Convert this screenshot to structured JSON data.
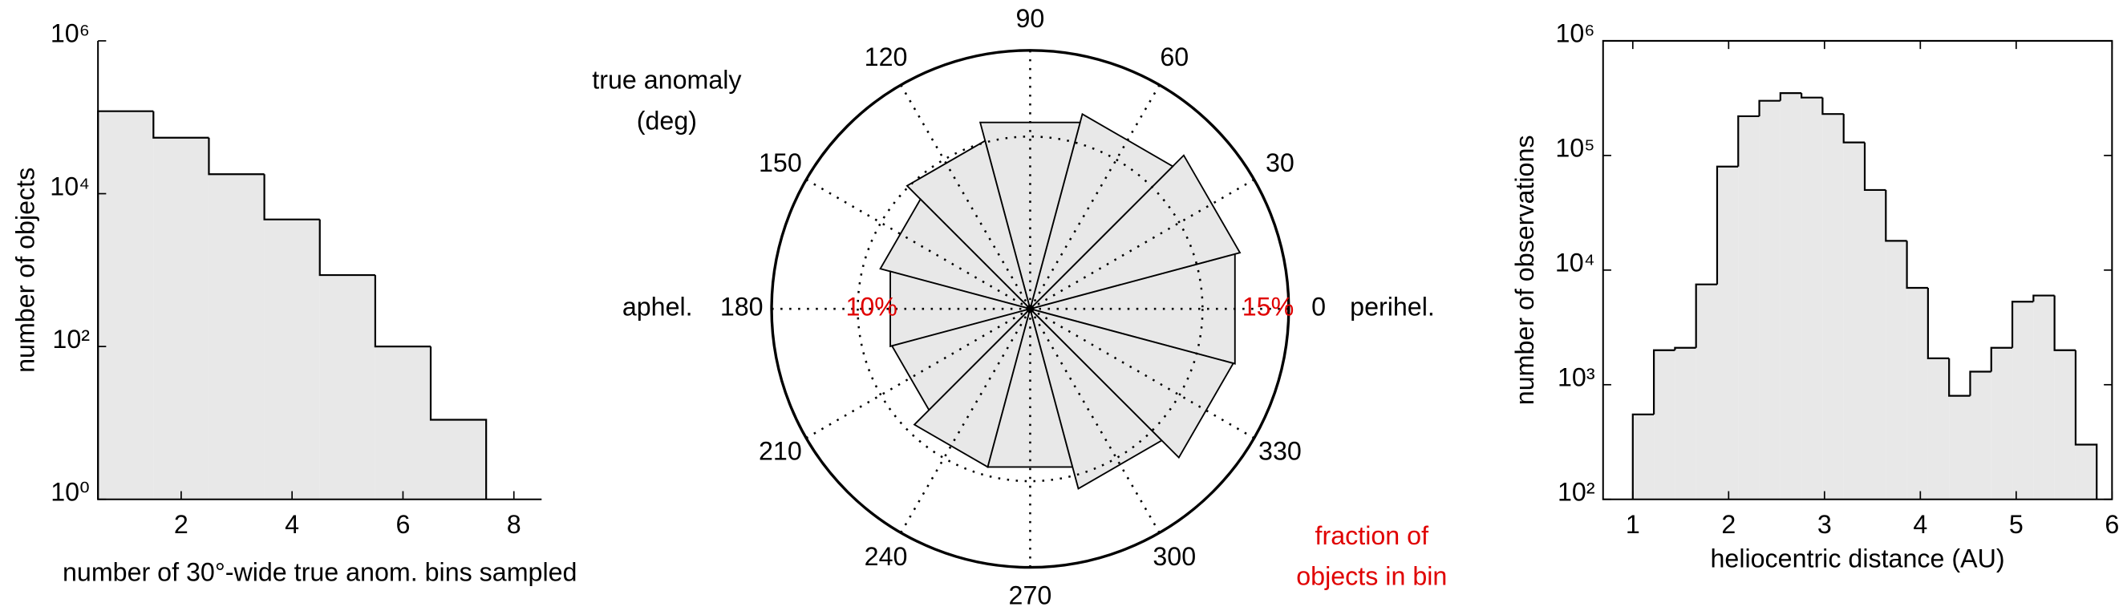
{
  "chart_data": [
    {
      "type": "histogram",
      "bins": [
        0.5,
        1.5,
        2.5,
        3.5,
        4.5,
        5.5,
        6.5,
        7.5
      ],
      "values": [
        120000,
        54000,
        18000,
        4600,
        860,
        100,
        11
      ],
      "color": "#e8e8e8",
      "xlim": [
        0.5,
        8.5
      ],
      "xticks": [
        2,
        4,
        6,
        8
      ],
      "ylim": [
        1,
        1000000
      ],
      "yscale": "log",
      "yticks": [
        {
          "value": 1,
          "label": "10⁰"
        },
        {
          "value": 100,
          "label": "10²"
        },
        {
          "value": 10000,
          "label": "10⁴"
        },
        {
          "value": 1000000,
          "label": "10⁶"
        }
      ],
      "xlabel": "number of 30°-wide true anom. bins sampled",
      "ylabel": "number of objects"
    },
    {
      "type": "polar",
      "theta": [
        0,
        30,
        60,
        90,
        120,
        150,
        180,
        210,
        240,
        270,
        300,
        330
      ],
      "values": [
        12.3,
        12.6,
        11.7,
        11.2,
        10.1,
        9.0,
        8.4,
        8.3,
        9.5,
        9.5,
        10.8,
        12.2
      ],
      "color": "#e8e8e8",
      "rlim": [
        0,
        15
      ],
      "rticks": [
        {
          "value": 10,
          "label": "10%"
        },
        {
          "value": 15,
          "label": "15%"
        }
      ],
      "rtick_color": "#e00000",
      "axis_label": [
        "true anomaly",
        "(deg)"
      ],
      "perihel_label": "perihel.",
      "aphel_label": "aphel.",
      "value_note": [
        "fraction of",
        "objects in bin"
      ],
      "note_color": "#e00000"
    },
    {
      "type": "histogram",
      "bins": [
        1,
        1.22,
        1.44,
        1.66,
        1.88,
        2.1,
        2.32,
        2.54,
        2.76,
        2.98,
        3.2,
        3.42,
        3.64,
        3.86,
        4.08,
        4.3,
        4.52,
        4.74,
        4.96,
        5.18,
        5.4,
        5.62,
        5.84
      ],
      "values": [
        550,
        2000,
        2100,
        7500,
        80000,
        220000,
        300000,
        350000,
        320000,
        230000,
        130000,
        50000,
        18000,
        7000,
        1700,
        800,
        1300,
        2100,
        5300,
        6000,
        2000,
        300
      ],
      "color": "#e8e8e8",
      "xlim": [
        0.69,
        6
      ],
      "xticks": [
        1,
        2,
        3,
        4,
        5,
        6
      ],
      "ylim": [
        100,
        1000000
      ],
      "yscale": "log",
      "yticks": [
        {
          "value": 100,
          "label": "10²"
        },
        {
          "value": 1000,
          "label": "10³"
        },
        {
          "value": 10000,
          "label": "10⁴"
        },
        {
          "value": 100000,
          "label": "10⁵"
        },
        {
          "value": 1000000,
          "label": "10⁶"
        }
      ],
      "xlabel": "heliocentric distance (AU)",
      "ylabel": "number of observations",
      "box": true
    }
  ]
}
